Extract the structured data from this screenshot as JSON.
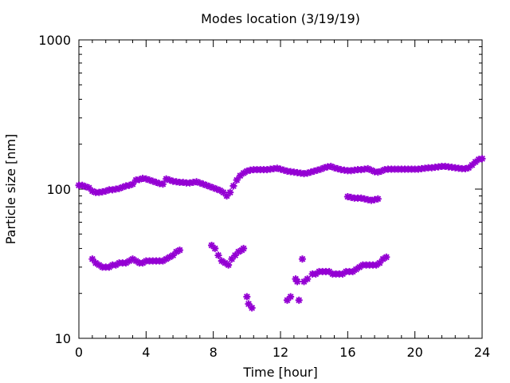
{
  "chart_data": {
    "type": "scatter",
    "title": "Modes location (3/19/19)",
    "xlabel": "Time [hour]",
    "ylabel": "Particle size [nm]",
    "xlim": [
      0,
      24
    ],
    "ylim": [
      10,
      1000
    ],
    "yscale": "log",
    "x_ticks": [
      0,
      4,
      8,
      12,
      16,
      20,
      24
    ],
    "x_tick_labels": [
      "0",
      "4",
      "8",
      "12",
      "16",
      "20",
      "24"
    ],
    "x_minor_step": 0.8,
    "y_ticks": [
      10,
      100,
      1000
    ],
    "y_tick_labels": [
      "10",
      "100",
      "1000"
    ],
    "y_minor_ticks": [
      20,
      30,
      40,
      50,
      60,
      70,
      80,
      90,
      200,
      300,
      400,
      500,
      600,
      700,
      800,
      900
    ],
    "grid": false,
    "legend": "none",
    "marker_color": "#9400d3",
    "series": [
      {
        "points": [
          [
            0.0,
            106
          ],
          [
            0.2,
            106
          ],
          [
            0.4,
            104
          ],
          [
            0.6,
            102
          ],
          [
            0.8,
            97
          ],
          [
            1.0,
            95
          ],
          [
            1.2,
            95
          ],
          [
            1.4,
            96
          ],
          [
            1.6,
            97
          ],
          [
            1.8,
            99
          ],
          [
            2.0,
            99
          ],
          [
            2.2,
            100
          ],
          [
            2.4,
            101
          ],
          [
            2.6,
            103
          ],
          [
            2.8,
            105
          ],
          [
            3.0,
            106
          ],
          [
            3.2,
            108
          ],
          [
            3.4,
            115
          ],
          [
            3.6,
            116
          ],
          [
            3.8,
            118
          ],
          [
            4.0,
            117
          ],
          [
            4.2,
            115
          ],
          [
            4.4,
            113
          ],
          [
            4.6,
            111
          ],
          [
            4.8,
            109
          ],
          [
            5.0,
            108
          ],
          [
            5.2,
            117
          ],
          [
            5.4,
            115
          ],
          [
            5.6,
            113
          ],
          [
            5.8,
            112
          ],
          [
            6.0,
            111
          ],
          [
            6.2,
            111
          ],
          [
            6.4,
            110
          ],
          [
            6.6,
            110
          ],
          [
            6.8,
            111
          ],
          [
            7.0,
            112
          ],
          [
            7.2,
            110
          ],
          [
            7.4,
            108
          ],
          [
            7.6,
            106
          ],
          [
            7.8,
            104
          ],
          [
            8.0,
            102
          ],
          [
            8.2,
            100
          ],
          [
            8.4,
            98
          ],
          [
            8.6,
            95
          ],
          [
            8.8,
            90
          ],
          [
            9.0,
            95
          ],
          [
            9.2,
            105
          ],
          [
            9.4,
            115
          ],
          [
            9.6,
            123
          ],
          [
            9.8,
            128
          ],
          [
            10.0,
            132
          ],
          [
            10.2,
            134
          ],
          [
            10.4,
            135
          ],
          [
            10.6,
            135
          ],
          [
            10.8,
            135
          ],
          [
            11.0,
            135
          ],
          [
            11.2,
            135
          ],
          [
            11.4,
            136
          ],
          [
            11.6,
            137
          ],
          [
            11.8,
            138
          ],
          [
            12.0,
            136
          ],
          [
            12.2,
            134
          ],
          [
            12.4,
            132
          ],
          [
            12.6,
            131
          ],
          [
            12.8,
            130
          ],
          [
            13.0,
            129
          ],
          [
            13.2,
            128
          ],
          [
            13.4,
            127
          ],
          [
            13.6,
            128
          ],
          [
            13.8,
            130
          ],
          [
            14.0,
            132
          ],
          [
            14.2,
            134
          ],
          [
            14.4,
            136
          ],
          [
            14.6,
            139
          ],
          [
            14.8,
            141
          ],
          [
            15.0,
            142
          ],
          [
            15.2,
            139
          ],
          [
            15.4,
            137
          ],
          [
            15.6,
            135
          ],
          [
            15.8,
            134
          ],
          [
            16.0,
            133
          ],
          [
            16.2,
            133
          ],
          [
            16.4,
            134
          ],
          [
            16.6,
            135
          ],
          [
            16.8,
            135
          ],
          [
            17.0,
            136
          ],
          [
            17.2,
            137
          ],
          [
            17.4,
            134
          ],
          [
            17.6,
            131
          ],
          [
            17.8,
            130
          ],
          [
            18.0,
            132
          ],
          [
            18.2,
            135
          ],
          [
            18.4,
            136
          ],
          [
            18.6,
            136
          ],
          [
            18.8,
            136
          ],
          [
            19.0,
            136
          ],
          [
            19.2,
            136
          ],
          [
            19.4,
            136
          ],
          [
            19.6,
            136
          ],
          [
            19.8,
            136
          ],
          [
            20.0,
            136
          ],
          [
            20.2,
            136
          ],
          [
            20.4,
            137
          ],
          [
            20.6,
            138
          ],
          [
            20.8,
            139
          ],
          [
            21.0,
            139
          ],
          [
            21.2,
            140
          ],
          [
            21.4,
            141
          ],
          [
            21.6,
            142
          ],
          [
            21.8,
            142
          ],
          [
            22.0,
            141
          ],
          [
            22.2,
            140
          ],
          [
            22.4,
            139
          ],
          [
            22.6,
            138
          ],
          [
            22.8,
            137
          ],
          [
            23.0,
            137
          ],
          [
            23.2,
            139
          ],
          [
            23.4,
            145
          ],
          [
            23.6,
            152
          ],
          [
            23.8,
            158
          ],
          [
            24.0,
            160
          ]
        ]
      },
      {
        "points": [
          [
            16.0,
            89
          ],
          [
            16.2,
            88
          ],
          [
            16.4,
            87
          ],
          [
            16.6,
            87
          ],
          [
            16.8,
            87
          ],
          [
            17.0,
            86
          ],
          [
            17.2,
            85
          ],
          [
            17.4,
            84
          ],
          [
            17.6,
            85
          ],
          [
            17.8,
            86
          ]
        ]
      },
      {
        "points": [
          [
            0.8,
            34
          ],
          [
            1.0,
            32
          ],
          [
            1.2,
            31
          ],
          [
            1.4,
            30
          ],
          [
            1.6,
            30
          ],
          [
            1.8,
            30
          ],
          [
            2.0,
            31
          ],
          [
            2.2,
            31
          ],
          [
            2.4,
            32
          ],
          [
            2.6,
            32
          ],
          [
            2.8,
            32
          ],
          [
            3.0,
            33
          ],
          [
            3.2,
            34
          ],
          [
            3.4,
            33
          ],
          [
            3.6,
            32
          ],
          [
            3.8,
            32
          ],
          [
            4.0,
            33
          ],
          [
            4.2,
            33
          ],
          [
            4.4,
            33
          ],
          [
            4.6,
            33
          ],
          [
            4.8,
            33
          ],
          [
            5.0,
            33
          ],
          [
            5.2,
            34
          ],
          [
            5.4,
            35
          ],
          [
            5.6,
            36
          ],
          [
            5.8,
            38
          ],
          [
            6.0,
            39
          ]
        ]
      },
      {
        "points": [
          [
            7.9,
            42
          ],
          [
            8.1,
            40
          ],
          [
            8.3,
            36
          ],
          [
            8.5,
            33
          ],
          [
            8.7,
            32
          ],
          [
            8.9,
            31
          ],
          [
            9.1,
            34
          ],
          [
            9.3,
            36
          ],
          [
            9.5,
            38
          ],
          [
            9.7,
            39
          ],
          [
            9.8,
            40
          ]
        ]
      },
      {
        "points": [
          [
            10.0,
            19
          ],
          [
            10.1,
            17
          ],
          [
            10.3,
            16
          ],
          [
            12.4,
            18
          ],
          [
            12.6,
            19
          ],
          [
            12.9,
            25
          ],
          [
            13.0,
            24
          ],
          [
            13.1,
            18
          ],
          [
            13.3,
            34
          ],
          [
            13.4,
            24
          ],
          [
            13.6,
            25
          ]
        ]
      },
      {
        "points": [
          [
            13.9,
            27
          ],
          [
            14.1,
            27
          ],
          [
            14.3,
            28
          ],
          [
            14.5,
            28
          ],
          [
            14.7,
            28
          ],
          [
            14.9,
            28
          ],
          [
            15.1,
            27
          ],
          [
            15.3,
            27
          ],
          [
            15.5,
            27
          ],
          [
            15.7,
            27
          ],
          [
            15.9,
            28
          ],
          [
            16.1,
            28
          ],
          [
            16.3,
            28
          ],
          [
            16.5,
            29
          ],
          [
            16.7,
            30
          ],
          [
            16.9,
            31
          ],
          [
            17.1,
            31
          ],
          [
            17.3,
            31
          ],
          [
            17.5,
            31
          ],
          [
            17.7,
            31
          ],
          [
            17.9,
            32
          ],
          [
            18.1,
            34
          ],
          [
            18.3,
            35
          ]
        ]
      }
    ]
  }
}
